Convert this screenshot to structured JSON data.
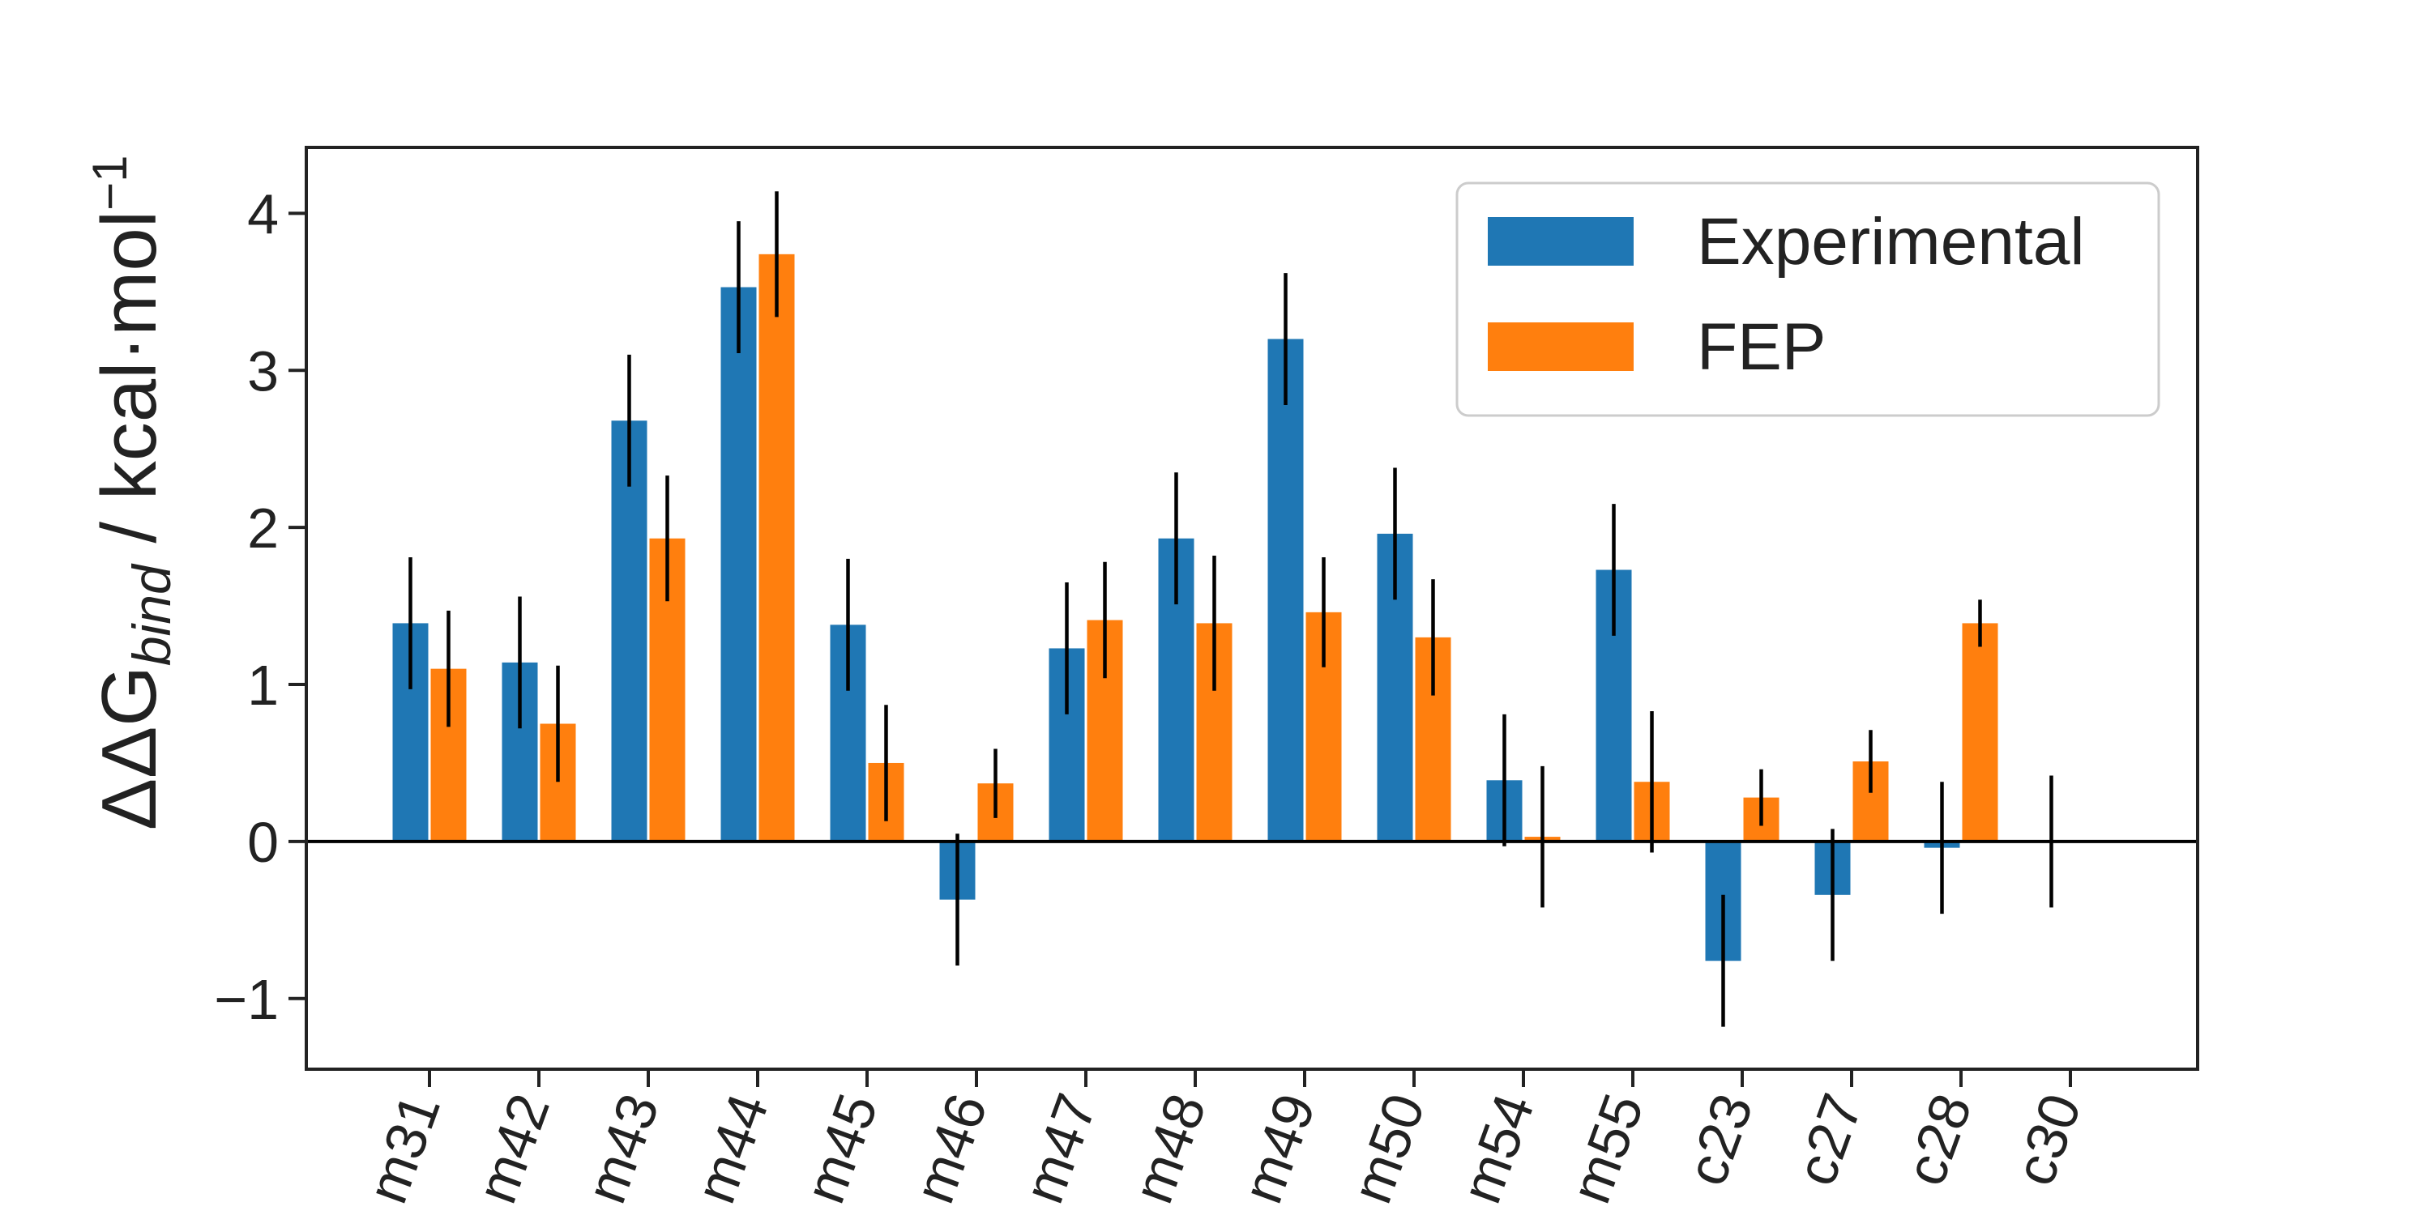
{
  "chart_data": {
    "type": "bar",
    "categories": [
      "m31",
      "m42",
      "m43",
      "m44",
      "m45",
      "m46",
      "m47",
      "m48",
      "m49",
      "m50",
      "m54",
      "m55",
      "c23",
      "c27",
      "c28",
      "c30"
    ],
    "series": [
      {
        "name": "Experimental",
        "color": "#1f77b4",
        "values": [
          1.39,
          1.14,
          2.68,
          3.53,
          1.38,
          -0.37,
          1.23,
          1.93,
          3.2,
          1.96,
          0.39,
          1.73,
          -0.76,
          -0.34,
          -0.04,
          0.0
        ],
        "errors": [
          0.42,
          0.42,
          0.42,
          0.42,
          0.42,
          0.42,
          0.42,
          0.42,
          0.42,
          0.42,
          0.42,
          0.42,
          0.42,
          0.42,
          0.42,
          0.42
        ]
      },
      {
        "name": "FEP",
        "color": "#ff7f0e",
        "values": [
          1.1,
          0.75,
          1.93,
          3.74,
          0.5,
          0.37,
          1.41,
          1.39,
          1.46,
          1.3,
          0.03,
          0.38,
          0.28,
          0.51,
          1.39,
          null
        ],
        "errors": [
          0.37,
          0.37,
          0.4,
          0.4,
          0.37,
          0.22,
          0.37,
          0.43,
          0.35,
          0.37,
          0.45,
          0.45,
          0.18,
          0.2,
          0.15,
          null
        ]
      }
    ],
    "ylabel": {
      "pre": "ΔΔG",
      "sub": "bind",
      "mid": " / kcal·mol",
      "sup": "−1"
    },
    "ylim": [
      -1.45,
      4.42
    ],
    "yticks": [
      -1,
      0,
      1,
      2,
      3,
      4
    ],
    "ytick_labels": [
      "−1",
      "0",
      "1",
      "2",
      "3",
      "4"
    ],
    "xlabel": "",
    "title": "",
    "zero_line": true,
    "grid": false,
    "legend_position": "top-right",
    "tick_label_rotation": -70
  }
}
